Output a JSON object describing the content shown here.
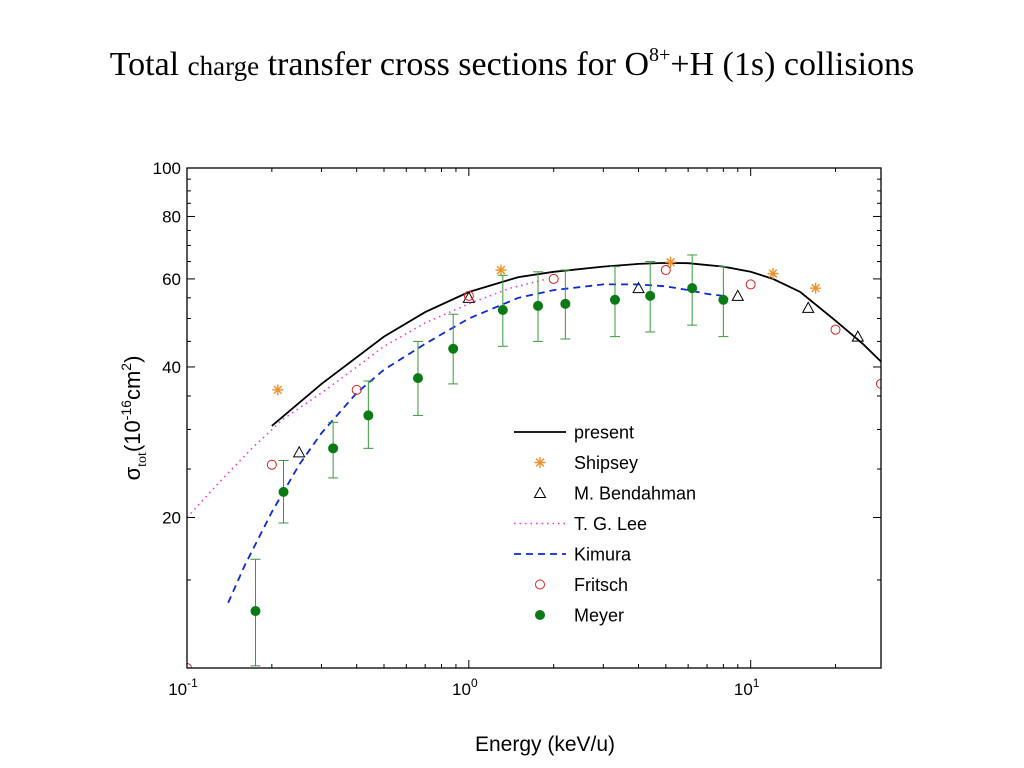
{
  "title": {
    "part1": "Total",
    "part2": "charge",
    "part3": "transfer cross sections for O",
    "charge_sup": "8+",
    "part4": "+H (1s) collisions"
  },
  "chart_data": {
    "type": "scatter",
    "x_scale": "log",
    "y_scale": "log",
    "xlim": [
      0.1,
      29
    ],
    "ylim": [
      10,
      100
    ],
    "xlabel": "Energy (keV/u)",
    "ylabel": {
      "symbol": "σ",
      "sub": "tot",
      "open": "(10",
      "exp": "-16",
      "unit": "cm",
      "unit_exp": "2",
      "close": ")"
    },
    "x_ticks": [
      {
        "value": 0.1,
        "base": "10",
        "exp": "-1"
      },
      {
        "value": 1,
        "base": "10",
        "exp": "0"
      },
      {
        "value": 10,
        "base": "10",
        "exp": "1"
      }
    ],
    "y_ticks": [
      {
        "value": 20,
        "label": "20"
      },
      {
        "value": 40,
        "label": "40"
      },
      {
        "value": 60,
        "label": "60"
      },
      {
        "value": 80,
        "label": "80"
      },
      {
        "value": 100,
        "label": "100"
      }
    ],
    "legend_position": "bottom-center",
    "series": [
      {
        "name": "present",
        "kind": "line",
        "style": "solid",
        "color": "#000000",
        "points": [
          [
            0.2,
            30.5
          ],
          [
            0.3,
            37
          ],
          [
            0.5,
            46
          ],
          [
            0.7,
            51.5
          ],
          [
            1.0,
            56.5
          ],
          [
            1.5,
            60.5
          ],
          [
            2.0,
            62
          ],
          [
            3.0,
            63.5
          ],
          [
            4.0,
            64.3
          ],
          [
            5.0,
            64.6
          ],
          [
            6.0,
            64.5
          ],
          [
            8.0,
            63.5
          ],
          [
            10.0,
            62
          ],
          [
            12.0,
            60
          ],
          [
            15.0,
            56.5
          ],
          [
            20.0,
            49.5
          ],
          [
            25.0,
            44.5
          ],
          [
            29.0,
            41
          ]
        ]
      },
      {
        "name": "Shipsey",
        "kind": "marker",
        "marker": "asterisk",
        "color": "#f0902a",
        "points": [
          [
            0.21,
            36
          ],
          [
            1.3,
            62.5
          ],
          [
            5.2,
            64.8
          ],
          [
            12,
            61.5
          ],
          [
            17,
            57.5
          ]
        ]
      },
      {
        "name": "M. Bendahman",
        "kind": "marker",
        "marker": "open-triangle",
        "color": "#000000",
        "points": [
          [
            0.25,
            27
          ],
          [
            1.0,
            55
          ],
          [
            4.0,
            57.5
          ],
          [
            9.0,
            55.5
          ],
          [
            16,
            52.5
          ],
          [
            24,
            46
          ]
        ]
      },
      {
        "name": "T. G. Lee",
        "kind": "line",
        "style": "dotted",
        "color": "#ff33cc",
        "points": [
          [
            0.1,
            20
          ],
          [
            0.13,
            23.5
          ],
          [
            0.17,
            27.5
          ],
          [
            0.22,
            31.5
          ],
          [
            0.3,
            35.5
          ],
          [
            0.4,
            40
          ],
          [
            0.5,
            44
          ],
          [
            0.7,
            49
          ],
          [
            1.0,
            53.5
          ],
          [
            1.4,
            57.5
          ],
          [
            1.9,
            60
          ]
        ]
      },
      {
        "name": "Kimura",
        "kind": "line",
        "style": "dashed",
        "color": "#0a2ad8",
        "points": [
          [
            0.14,
            13.5
          ],
          [
            0.16,
            16
          ],
          [
            0.2,
            20.5
          ],
          [
            0.25,
            25.5
          ],
          [
            0.3,
            29.5
          ],
          [
            0.4,
            35.5
          ],
          [
            0.5,
            39.5
          ],
          [
            0.7,
            44.5
          ],
          [
            1.0,
            50
          ],
          [
            1.5,
            55
          ],
          [
            2.0,
            57
          ],
          [
            3.0,
            58.5
          ],
          [
            4.0,
            58.5
          ],
          [
            5.0,
            58
          ],
          [
            6.0,
            57
          ],
          [
            7.0,
            56
          ],
          [
            8.0,
            55.5
          ]
        ]
      },
      {
        "name": "Fritsch",
        "kind": "marker",
        "marker": "open-circle",
        "color": "#e02020",
        "points": [
          [
            0.1,
            10
          ],
          [
            0.2,
            25.5
          ],
          [
            0.4,
            36
          ],
          [
            1.0,
            55.5
          ],
          [
            2.0,
            60
          ],
          [
            5.0,
            62.5
          ],
          [
            10.0,
            58.5
          ],
          [
            20.0,
            47.5
          ],
          [
            29.0,
            37
          ]
        ]
      },
      {
        "name": "Meyer",
        "kind": "marker",
        "marker": "filled-circle",
        "color": "#0a7a14",
        "error_color": "#3a9a3a",
        "points": [
          {
            "x": 0.175,
            "y": 13,
            "lo": 10.1,
            "hi": 16.5
          },
          {
            "x": 0.22,
            "y": 22.5,
            "lo": 19.5,
            "hi": 26
          },
          {
            "x": 0.33,
            "y": 27.5,
            "lo": 24,
            "hi": 31
          },
          {
            "x": 0.44,
            "y": 32,
            "lo": 27.5,
            "hi": 37.5
          },
          {
            "x": 0.66,
            "y": 38,
            "lo": 32,
            "hi": 45
          },
          {
            "x": 0.88,
            "y": 43.5,
            "lo": 37,
            "hi": 51
          },
          {
            "x": 1.32,
            "y": 52,
            "lo": 44,
            "hi": 61
          },
          {
            "x": 1.76,
            "y": 53,
            "lo": 45,
            "hi": 62
          },
          {
            "x": 2.2,
            "y": 53.5,
            "lo": 45.5,
            "hi": 62.5
          },
          {
            "x": 3.3,
            "y": 54.5,
            "lo": 46,
            "hi": 63.5
          },
          {
            "x": 4.4,
            "y": 55.5,
            "lo": 47,
            "hi": 65
          },
          {
            "x": 6.2,
            "y": 57.5,
            "lo": 48.5,
            "hi": 67
          },
          {
            "x": 8.0,
            "y": 54.5,
            "lo": 46,
            "hi": 63.5
          }
        ]
      }
    ]
  }
}
